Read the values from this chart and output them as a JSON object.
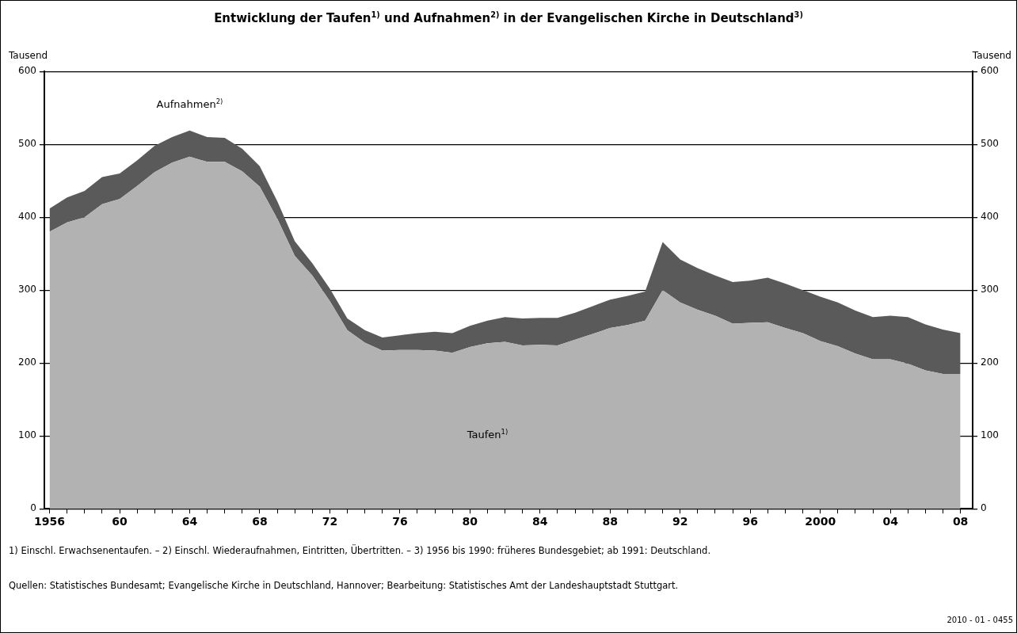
{
  "chart_data": {
    "type": "area",
    "title": "Entwicklung der Taufen$^{1)}$ und Aufnahmen$^{2)}$ in der Evangelischen Kirche in Deutschland$^{3)}$",
    "ylabel": "Tausend",
    "y2label": "Tausend",
    "stacked": true,
    "grid": "y",
    "legend": false,
    "x": [
      1956,
      1957,
      1958,
      1959,
      1960,
      1961,
      1962,
      1963,
      1964,
      1965,
      1966,
      1967,
      1968,
      1969,
      1970,
      1971,
      1972,
      1973,
      1974,
      1975,
      1976,
      1977,
      1978,
      1979,
      1980,
      1981,
      1982,
      1983,
      1984,
      1985,
      1986,
      1987,
      1988,
      1989,
      1990,
      1991,
      1992,
      1993,
      1994,
      1995,
      1996,
      1997,
      1998,
      1999,
      2000,
      2001,
      2002,
      2003,
      2004,
      2005,
      2006,
      2007,
      2008
    ],
    "series": [
      {
        "name": "Taufen$^{1)}$",
        "color": "#b2b2b2",
        "values": [
          380,
          393,
          400,
          418,
          425,
          443,
          462,
          475,
          483,
          476,
          476,
          463,
          442,
          398,
          347,
          320,
          285,
          245,
          228,
          217,
          218,
          218,
          217,
          214,
          222,
          227,
          229,
          224,
          225,
          224,
          232,
          240,
          248,
          252,
          258,
          300,
          283,
          273,
          265,
          254,
          255,
          256,
          248,
          241,
          230,
          223,
          213,
          205,
          205,
          199,
          190,
          185,
          185
        ]
      },
      {
        "name": "Aufnahmen$^{2)}$",
        "color": "#5a5a5a",
        "values": [
          32,
          34,
          36,
          37,
          35,
          35,
          36,
          35,
          36,
          34,
          33,
          31,
          28,
          24,
          20,
          17,
          17,
          16,
          17,
          18,
          20,
          23,
          26,
          27,
          29,
          31,
          34,
          37,
          37,
          38,
          37,
          38,
          39,
          40,
          40,
          66,
          59,
          57,
          55,
          57,
          58,
          61,
          61,
          59,
          61,
          60,
          59,
          58,
          60,
          64,
          63,
          61,
          56
        ]
      }
    ],
    "xlim": [
      1955.7,
      2008.7
    ],
    "xticks": [
      1956,
      {
        "value": 1957,
        "label": null
      },
      {
        "value": 1958,
        "label": null
      },
      {
        "value": 1959,
        "label": null
      },
      {
        "value": 1960,
        "label": "60"
      },
      {
        "value": 1961,
        "label": null
      },
      {
        "value": 1962,
        "label": null
      },
      {
        "value": 1963,
        "label": null
      },
      {
        "value": 1964,
        "label": "64"
      },
      {
        "value": 1965,
        "label": null
      },
      {
        "value": 1966,
        "label": null
      },
      {
        "value": 1967,
        "label": null
      },
      {
        "value": 1968,
        "label": "68"
      },
      {
        "value": 1969,
        "label": null
      },
      {
        "value": 1970,
        "label": null
      },
      {
        "value": 1971,
        "label": null
      },
      {
        "value": 1972,
        "label": "72"
      },
      {
        "value": 1973,
        "label": null
      },
      {
        "value": 1974,
        "label": null
      },
      {
        "value": 1975,
        "label": null
      },
      {
        "value": 1976,
        "label": "76"
      },
      {
        "value": 1977,
        "label": null
      },
      {
        "value": 1978,
        "label": null
      },
      {
        "value": 1979,
        "label": null
      },
      {
        "value": 1980,
        "label": "80"
      },
      {
        "value": 1981,
        "label": null
      },
      {
        "value": 1982,
        "label": null
      },
      {
        "value": 1983,
        "label": null
      },
      {
        "value": 1984,
        "label": "84"
      },
      {
        "value": 1985,
        "label": null
      },
      {
        "value": 1986,
        "label": null
      },
      {
        "value": 1987,
        "label": null
      },
      {
        "value": 1988,
        "label": "88"
      },
      {
        "value": 1989,
        "label": null
      },
      {
        "value": 1990,
        "label": null
      },
      {
        "value": 1991,
        "label": null
      },
      {
        "value": 1992,
        "label": "92"
      },
      {
        "value": 1993,
        "label": null
      },
      {
        "value": 1994,
        "label": null
      },
      {
        "value": 1995,
        "label": null
      },
      {
        "value": 1996,
        "label": "96"
      },
      {
        "value": 1997,
        "label": null
      },
      {
        "value": 1998,
        "label": null
      },
      {
        "value": 1999,
        "label": null
      },
      2000,
      {
        "value": 2001,
        "label": null
      },
      {
        "value": 2002,
        "label": null
      },
      {
        "value": 2003,
        "label": null
      },
      {
        "value": 2004,
        "label": "04"
      },
      {
        "value": 2005,
        "label": null
      },
      {
        "value": 2006,
        "label": null
      },
      {
        "value": 2007,
        "label": null
      },
      {
        "value": 2008,
        "label": "08"
      }
    ],
    "ylim": [
      0,
      600
    ],
    "yticks": [
      0,
      100,
      200,
      300,
      400,
      500,
      600
    ],
    "y2lim": [
      0,
      600
    ],
    "y2ticks": [
      0,
      100,
      200,
      300,
      400,
      500,
      600
    ],
    "annotations": [
      "1) Einschl. Erwachsenentaufen. – 2) Einschl. Wiederaufnahmen, Eintritten, Übertritten. – 3) 1956 bis 1990: früheres Bundesgebiet; ab 1991: Deutschland.",
      "Quellen: Statistisches Bundesamt; Evangelische Kirche in Deutschland, Hannover; Bearbeitung: Statistisches Amt der Landeshauptstadt Stuttgart.",
      "2010 - 01 - 0455"
    ]
  }
}
